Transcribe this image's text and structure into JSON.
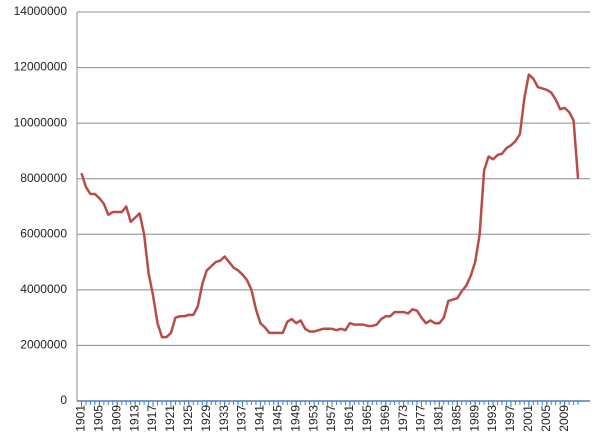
{
  "chart_data": {
    "type": "line",
    "x": [
      1901,
      1902,
      1903,
      1904,
      1905,
      1906,
      1907,
      1908,
      1909,
      1910,
      1911,
      1912,
      1913,
      1914,
      1915,
      1916,
      1917,
      1918,
      1919,
      1920,
      1921,
      1922,
      1923,
      1924,
      1925,
      1926,
      1927,
      1928,
      1929,
      1930,
      1931,
      1932,
      1933,
      1934,
      1935,
      1936,
      1937,
      1938,
      1939,
      1940,
      1941,
      1942,
      1943,
      1944,
      1945,
      1946,
      1947,
      1948,
      1949,
      1950,
      1951,
      1952,
      1953,
      1954,
      1955,
      1956,
      1957,
      1958,
      1959,
      1960,
      1961,
      1962,
      1963,
      1964,
      1965,
      1966,
      1967,
      1968,
      1969,
      1970,
      1971,
      1972,
      1973,
      1974,
      1975,
      1976,
      1977,
      1978,
      1979,
      1980,
      1981,
      1982,
      1983,
      1984,
      1985,
      1986,
      1987,
      1988,
      1989,
      1990,
      1991,
      1992,
      1993,
      1994,
      1995,
      1996,
      1997,
      1998,
      1999,
      2000,
      2001,
      2002,
      2003,
      2004,
      2005,
      2006,
      2007,
      2008,
      2009,
      2010,
      2011,
      2012
    ],
    "series": [
      {
        "color": "#b84c48",
        "values": [
          8200000,
          7700000,
          7450000,
          7450000,
          7300000,
          7100000,
          6700000,
          6800000,
          6800000,
          6800000,
          7000000,
          6450000,
          6600000,
          6750000,
          6000000,
          4600000,
          3800000,
          2800000,
          2300000,
          2300000,
          2450000,
          3000000,
          3050000,
          3050000,
          3100000,
          3100000,
          3400000,
          4200000,
          4700000,
          4850000,
          5000000,
          5050000,
          5200000,
          5000000,
          4800000,
          4700000,
          4550000,
          4350000,
          4000000,
          3300000,
          2800000,
          2650000,
          2450000,
          2450000,
          2450000,
          2450000,
          2850000,
          2950000,
          2800000,
          2900000,
          2600000,
          2500000,
          2500000,
          2550000,
          2600000,
          2600000,
          2600000,
          2550000,
          2600000,
          2550000,
          2800000,
          2750000,
          2750000,
          2750000,
          2700000,
          2700000,
          2750000,
          2950000,
          3050000,
          3050000,
          3200000,
          3200000,
          3200000,
          3150000,
          3300000,
          3250000,
          3000000,
          2800000,
          2900000,
          2800000,
          2800000,
          3000000,
          3600000,
          3650000,
          3700000,
          3950000,
          4150000,
          4500000,
          5000000,
          6000000,
          8300000,
          8800000,
          8700000,
          8850000,
          8900000,
          9100000,
          9200000,
          9350000,
          9600000,
          10900000,
          11750000,
          11600000,
          11300000,
          11250000,
          11200000,
          11100000,
          10850000,
          10500000,
          10550000,
          10400000,
          10100000,
          8000000
        ]
      }
    ],
    "xlim": [
      1900,
      2014
    ],
    "xticks": [
      1901,
      1905,
      1909,
      1913,
      1917,
      1921,
      1925,
      1929,
      1933,
      1937,
      1941,
      1945,
      1949,
      1953,
      1957,
      1961,
      1965,
      1969,
      1973,
      1977,
      1981,
      1985,
      1989,
      1993,
      1997,
      2001,
      2005,
      2009
    ],
    "ylim": [
      0,
      14000000
    ],
    "yticks": [
      0,
      2000000,
      4000000,
      6000000,
      8000000,
      10000000,
      12000000,
      14000000
    ],
    "grid": true,
    "axis_color": "#4a7ebb"
  }
}
